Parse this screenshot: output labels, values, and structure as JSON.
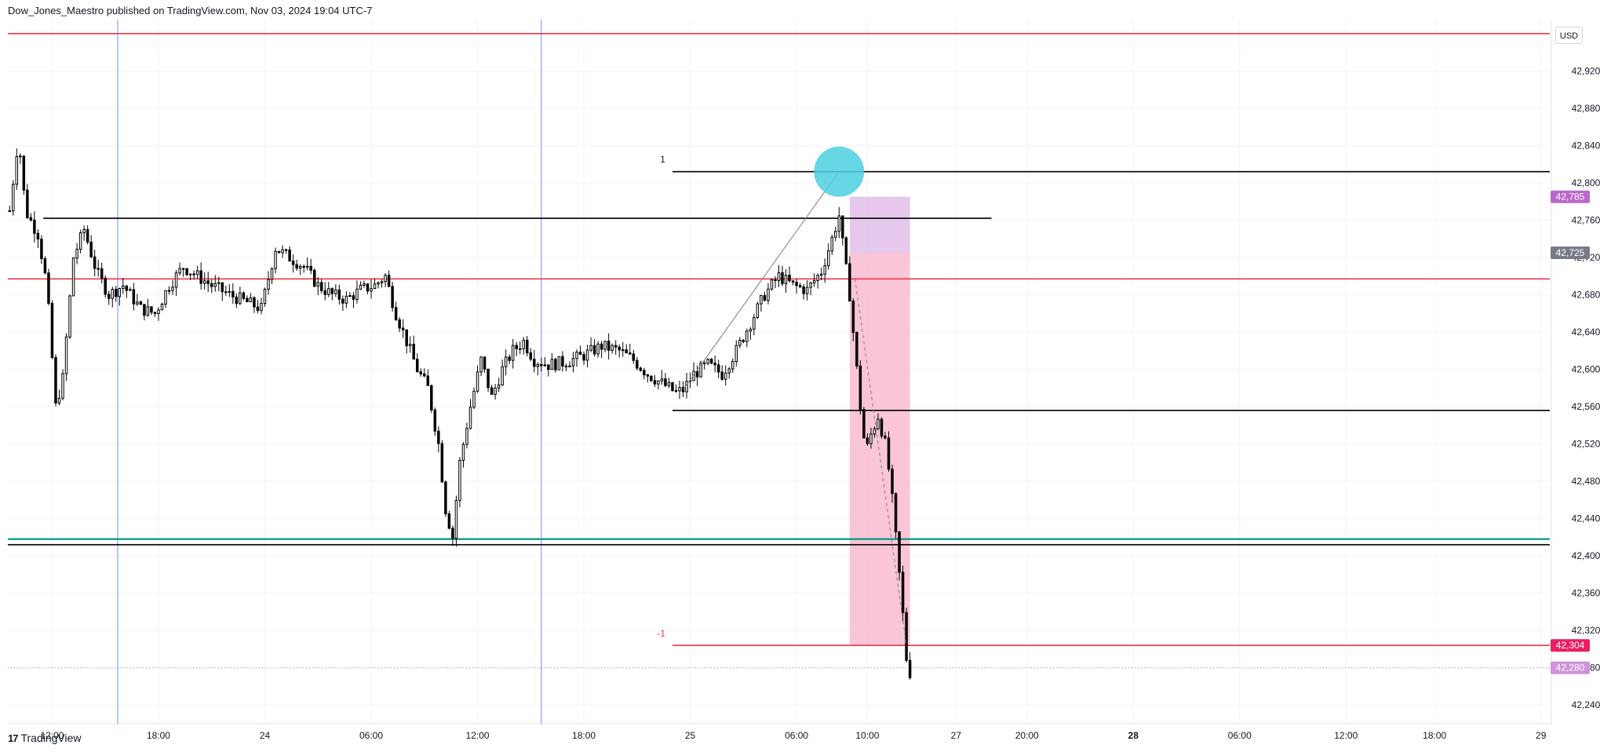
{
  "header": {
    "publisher": "Dow_Jones_Maestro published on TradingView.com, Nov 03, 2024 19:04 UTC-7"
  },
  "currency_label": "USD",
  "footer": {
    "brand": "TradingView",
    "logo_glyph": "17"
  },
  "colors": {
    "red_line": "#f23645",
    "green_line": "#089981",
    "blue_line": "#2962ff",
    "pink_zone": "#f8bbd0",
    "lilac_zone": "#e1bee7",
    "cyan_marker": "#4dd0e1",
    "badge_magenta": "#e91e63",
    "badge_purple": "#ba68c8",
    "badge_gray": "#787b86",
    "candle": "#000000"
  },
  "chart_data": {
    "type": "candlestick",
    "title": "",
    "xlabel": "",
    "ylabel": "",
    "ylim": [
      42220,
      42975
    ],
    "y_ticks": [
      42240,
      42280,
      42320,
      42360,
      42400,
      42440,
      42480,
      42520,
      42560,
      42600,
      42640,
      42680,
      42720,
      42760,
      42800,
      42840,
      42880,
      42920
    ],
    "y_tick_labels": [
      "42,240",
      "42,280",
      "42,320",
      "42,360",
      "42,400",
      "42,440",
      "42,480",
      "42,520",
      "42,560",
      "42,600",
      "42,640",
      "42,680",
      "42,720",
      "42,760",
      "42,800",
      "42,840",
      "42,880",
      "42,920"
    ],
    "x_tick_labels": [
      {
        "t": 2.0,
        "label": "12:00",
        "bold": false
      },
      {
        "t": 8.0,
        "label": "18:00",
        "bold": false
      },
      {
        "t": 14.0,
        "label": "24",
        "bold": false
      },
      {
        "t": 20.0,
        "label": "06:00",
        "bold": false
      },
      {
        "t": 26.0,
        "label": "12:00",
        "bold": false
      },
      {
        "t": 32.0,
        "label": "18:00",
        "bold": false
      },
      {
        "t": 38.0,
        "label": "25",
        "bold": false
      },
      {
        "t": 44.0,
        "label": "06:00",
        "bold": false
      },
      {
        "t": 48.0,
        "label": "10:00",
        "bold": false
      },
      {
        "t": 53.0,
        "label": "27",
        "bold": false
      },
      {
        "t": 57.0,
        "label": "20:00",
        "bold": false
      },
      {
        "t": 63.0,
        "label": "28",
        "bold": true
      },
      {
        "t": 69.0,
        "label": "06:00",
        "bold": false
      },
      {
        "t": 75.0,
        "label": "12:00",
        "bold": false
      },
      {
        "t": 80.0,
        "label": "18:00",
        "bold": false
      },
      {
        "t": 86.0,
        "label": "29",
        "bold": false
      }
    ],
    "x_range": [
      -0.5,
      86.5
    ],
    "candle_anchors": [
      {
        "t": -0.4,
        "p": 42770
      },
      {
        "t": 0.1,
        "p": 42850
      },
      {
        "t": 0.5,
        "p": 42770
      },
      {
        "t": 1.2,
        "p": 42745
      },
      {
        "t": 1.7,
        "p": 42690
      },
      {
        "t": 2.2,
        "p": 42560
      },
      {
        "t": 2.6,
        "p": 42590
      },
      {
        "t": 3.2,
        "p": 42720
      },
      {
        "t": 3.8,
        "p": 42750
      },
      {
        "t": 4.5,
        "p": 42705
      },
      {
        "t": 5.2,
        "p": 42680
      },
      {
        "t": 6.0,
        "p": 42690
      },
      {
        "t": 7.0,
        "p": 42665
      },
      {
        "t": 7.8,
        "p": 42660
      },
      {
        "t": 8.6,
        "p": 42690
      },
      {
        "t": 9.4,
        "p": 42710
      },
      {
        "t": 10.2,
        "p": 42700
      },
      {
        "t": 11.0,
        "p": 42690
      },
      {
        "t": 12.0,
        "p": 42680
      },
      {
        "t": 13.0,
        "p": 42672
      },
      {
        "t": 13.8,
        "p": 42665
      },
      {
        "t": 14.6,
        "p": 42730
      },
      {
        "t": 15.4,
        "p": 42720
      },
      {
        "t": 16.2,
        "p": 42710
      },
      {
        "t": 17.0,
        "p": 42690
      },
      {
        "t": 17.8,
        "p": 42680
      },
      {
        "t": 18.6,
        "p": 42675
      },
      {
        "t": 19.4,
        "p": 42685
      },
      {
        "t": 20.2,
        "p": 42690
      },
      {
        "t": 20.8,
        "p": 42700
      },
      {
        "t": 21.4,
        "p": 42660
      },
      {
        "t": 22.0,
        "p": 42630
      },
      {
        "t": 22.6,
        "p": 42600
      },
      {
        "t": 23.2,
        "p": 42580
      },
      {
        "t": 23.8,
        "p": 42520
      },
      {
        "t": 24.2,
        "p": 42450
      },
      {
        "t": 24.6,
        "p": 42420
      },
      {
        "t": 25.0,
        "p": 42500
      },
      {
        "t": 25.6,
        "p": 42560
      },
      {
        "t": 26.2,
        "p": 42610
      },
      {
        "t": 26.8,
        "p": 42570
      },
      {
        "t": 27.4,
        "p": 42600
      },
      {
        "t": 28.0,
        "p": 42620
      },
      {
        "t": 28.6,
        "p": 42630
      },
      {
        "t": 29.2,
        "p": 42610
      },
      {
        "t": 30.0,
        "p": 42605
      },
      {
        "t": 31.0,
        "p": 42608
      },
      {
        "t": 32.0,
        "p": 42615
      },
      {
        "t": 33.0,
        "p": 42625
      },
      {
        "t": 34.0,
        "p": 42620
      },
      {
        "t": 34.8,
        "p": 42610
      },
      {
        "t": 35.6,
        "p": 42595
      },
      {
        "t": 36.4,
        "p": 42585
      },
      {
        "t": 37.2,
        "p": 42575
      },
      {
        "t": 37.6,
        "p": 42578
      },
      {
        "t": 38.2,
        "p": 42595
      },
      {
        "t": 39.0,
        "p": 42605
      },
      {
        "t": 39.8,
        "p": 42595
      },
      {
        "t": 40.6,
        "p": 42620
      },
      {
        "t": 41.4,
        "p": 42650
      },
      {
        "t": 42.2,
        "p": 42680
      },
      {
        "t": 43.0,
        "p": 42700
      },
      {
        "t": 43.8,
        "p": 42690
      },
      {
        "t": 44.6,
        "p": 42685
      },
      {
        "t": 45.4,
        "p": 42705
      },
      {
        "t": 46.0,
        "p": 42740
      },
      {
        "t": 46.4,
        "p": 42765
      },
      {
        "t": 46.7,
        "p": 42720
      },
      {
        "t": 47.0,
        "p": 42680
      },
      {
        "t": 47.3,
        "p": 42620
      },
      {
        "t": 47.6,
        "p": 42560
      },
      {
        "t": 47.9,
        "p": 42510
      },
      {
        "t": 48.2,
        "p": 42530
      },
      {
        "t": 48.6,
        "p": 42550
      },
      {
        "t": 49.0,
        "p": 42520
      },
      {
        "t": 49.3,
        "p": 42480
      },
      {
        "t": 49.6,
        "p": 42420
      },
      {
        "t": 49.9,
        "p": 42360
      },
      {
        "t": 50.2,
        "p": 42290
      },
      {
        "t": 50.4,
        "p": 42275
      }
    ],
    "horizontal_lines": [
      {
        "name": "top-red-line",
        "p": 42960,
        "color": "red",
        "t_start": -0.5,
        "t_end": 86.5
      },
      {
        "name": "mid-red-line",
        "p": 42697,
        "color": "red",
        "t_start": -0.5,
        "t_end": 86.5
      },
      {
        "name": "green-line",
        "p": 42418,
        "color": "green",
        "t_start": -0.5,
        "t_end": 86.5
      },
      {
        "name": "dark-line",
        "p": 42412,
        "color": "black",
        "t_start": -0.5,
        "t_end": 86.5
      },
      {
        "name": "black-line-one",
        "p": 42812,
        "color": "black",
        "t_start": 37.0,
        "t_end": 86.5
      },
      {
        "name": "black-line-upper",
        "p": 42762,
        "color": "black",
        "t_start": 1.5,
        "t_end": 55.0
      },
      {
        "name": "black-line-mid",
        "p": 42556,
        "color": "black",
        "t_start": 37.0,
        "t_end": 86.5
      },
      {
        "name": "red-line-minus-one",
        "p": 42304,
        "color": "red",
        "t_start": 37.0,
        "t_end": 86.5
      }
    ],
    "vertical_lines": [
      {
        "name": "blue-vline-1",
        "t": 5.7
      },
      {
        "name": "blue-vline-2",
        "t": 29.6
      }
    ],
    "zones": [
      {
        "name": "pink-zone",
        "t_start": 47.0,
        "t_end": 50.4,
        "p_low": 42304,
        "p_high": 42725
      },
      {
        "name": "lilac-zone",
        "t_start": 47.0,
        "t_end": 50.4,
        "p_low": 42725,
        "p_high": 42785
      }
    ],
    "marker": {
      "name": "cyan-circle",
      "t": 46.4,
      "p": 42812
    },
    "annotations": [
      {
        "name": "label-one",
        "text": "1",
        "t": 36.6,
        "p": 42825,
        "color": "#131722"
      },
      {
        "name": "label-minus-one",
        "text": "-1",
        "t": 36.6,
        "p": 42317,
        "color": "#f23645"
      }
    ],
    "price_badges": [
      {
        "name": "badge-42785",
        "label": "42,785",
        "p": 42785,
        "color": "#ba68c8"
      },
      {
        "name": "badge-42725",
        "label": "42,725",
        "p": 42725,
        "color": "#787b86"
      },
      {
        "name": "badge-42304",
        "label": "42,304",
        "p": 42304,
        "color": "#e91e63"
      },
      {
        "name": "badge-42280",
        "label": "42,280",
        "p": 42280,
        "color": "#ce93d8"
      }
    ],
    "current_price_dotted": 42280
  }
}
